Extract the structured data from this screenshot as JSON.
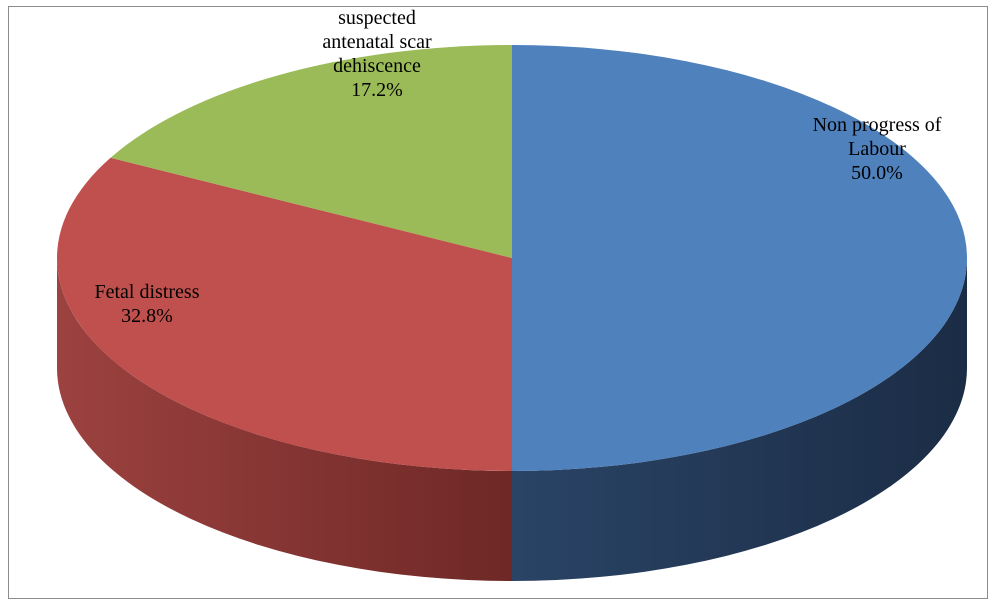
{
  "chart_data": {
    "type": "pie",
    "style": "3d",
    "title": "",
    "slices": [
      {
        "label_lines": [
          "Non progress of",
          "Labour"
        ],
        "value": 50.0,
        "value_label": "50.0%",
        "color": "#4f81bd",
        "side_color": "#233a5a"
      },
      {
        "label_lines": [
          "Fetal distress"
        ],
        "value": 32.8,
        "value_label": "32.8%",
        "color": "#c0504d",
        "side_color": "#7a2d2b"
      },
      {
        "label_lines": [
          "suspected",
          "antenatal  scar",
          "dehiscence"
        ],
        "value": 17.2,
        "value_label": "17.2%",
        "color": "#9bbb59",
        "side_color": "#5f7636"
      }
    ],
    "legend": "none",
    "data_labels": "inside"
  }
}
